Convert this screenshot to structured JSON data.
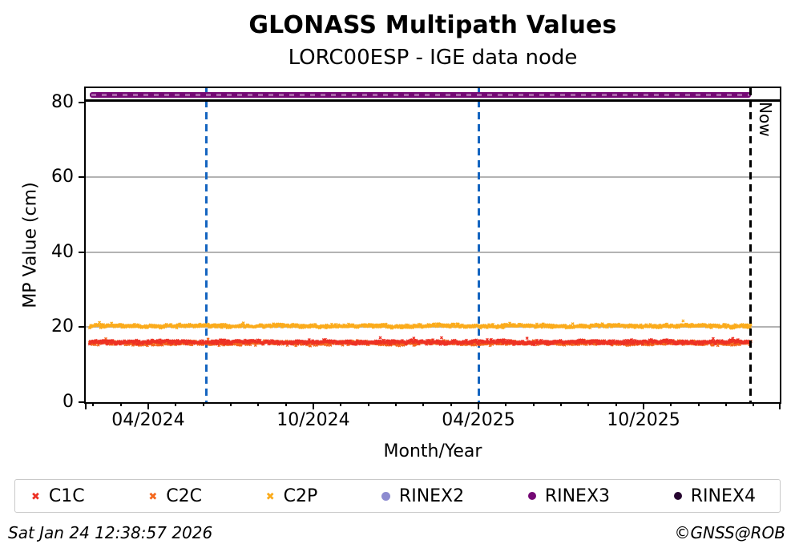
{
  "figure": {
    "title": "GLONASS Multipath Values",
    "subtitle": "LORC00ESP - IGE data node",
    "footer_timestamp": "Sat Jan 24 12:38:57 2026",
    "footer_credit": "©GNSS@ROB"
  },
  "chart_data": {
    "type": "scatter",
    "title": "GLONASS Multipath Values",
    "subtitle": "LORC00ESP - IGE data node",
    "xlabel": "Month/Year",
    "ylabel": "MP Value (cm)",
    "ylim": [
      0,
      83.8
    ],
    "yticks": [
      0,
      20,
      40,
      60,
      80
    ],
    "grid_yticks": [
      20,
      40,
      60
    ],
    "grid_color": "#b3b3b3",
    "x_axis": {
      "unit": "month index, 0 = 2024-01-01",
      "mlim": [
        0.73,
        25.95
      ],
      "minor_tick_every_months": 1,
      "major_ticks": [
        {
          "label": "04/2024",
          "m": 3
        },
        {
          "label": "10/2024",
          "m": 9
        },
        {
          "label": "04/2025",
          "m": 15
        },
        {
          "label": "10/2025",
          "m": 21
        }
      ]
    },
    "series": [
      {
        "name": "C1C",
        "marker": "x",
        "color": "#ed3124",
        "mean_cm": 16.05,
        "noise_cm": 0.6,
        "m_start": 0.87,
        "m_end": 24.9
      },
      {
        "name": "C2C",
        "marker": "x",
        "color": "#f4671d",
        "mean_cm": 15.75,
        "noise_cm": 0.6,
        "m_start": 0.87,
        "m_end": 24.9
      },
      {
        "name": "C2P",
        "marker": "x",
        "color": "#fbab1b",
        "mean_cm": 20.35,
        "noise_cm": 0.5,
        "m_start": 0.87,
        "m_end": 24.9
      },
      {
        "name": "RINEX2",
        "marker": "circle",
        "color": "#8d8bd0",
        "visible_points": 0
      },
      {
        "name": "RINEX3",
        "marker": "circle",
        "color": "#740874",
        "constant_cm": 82,
        "m_start": 0.87,
        "m_end": 24.9
      },
      {
        "name": "RINEX4",
        "marker": "circle",
        "color": "#270530",
        "visible_points": 0
      }
    ],
    "annotations": {
      "separator_line": {
        "y_cm": 80.5,
        "color": "#000000",
        "style": "solid"
      },
      "event_lines": {
        "color": "#1565c0",
        "style": "dashed",
        "positions_m": [
          5.1,
          15.0
        ]
      },
      "now_line": {
        "m": 24.9,
        "label": "Now",
        "color": "#000000",
        "style": "dashed"
      }
    },
    "legend": {
      "position": "bottom",
      "entries": [
        "C1C",
        "C2C",
        "C2P",
        "RINEX2",
        "RINEX3",
        "RINEX4"
      ]
    },
    "marker_glyphs": {
      "x": "✖",
      "circle": "●"
    }
  }
}
